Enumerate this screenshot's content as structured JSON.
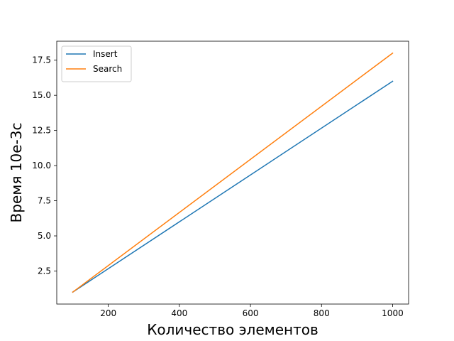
{
  "chart_data": {
    "type": "line",
    "title": "",
    "xlabel": "Количество элементов",
    "ylabel": "Время 10e-3c",
    "xlim": [
      55,
      1045
    ],
    "ylim": [
      0.15,
      18.85
    ],
    "x_ticks": [
      200,
      400,
      600,
      800,
      1000
    ],
    "y_ticks": [
      2.5,
      5.0,
      7.5,
      10.0,
      12.5,
      15.0,
      17.5
    ],
    "x_tick_labels": [
      "200",
      "400",
      "600",
      "800",
      "1000"
    ],
    "y_tick_labels": [
      "2.5",
      "5.0",
      "7.5",
      "10.0",
      "12.5",
      "15.0",
      "17.5"
    ],
    "grid": false,
    "legend_position": "top-left",
    "x": [
      100,
      1000
    ],
    "series": [
      {
        "name": "Insert",
        "color": "#1f77b4",
        "values": [
          1.0,
          16.0
        ]
      },
      {
        "name": "Search",
        "color": "#ff7f0e",
        "values": [
          1.0,
          18.0
        ]
      }
    ]
  }
}
